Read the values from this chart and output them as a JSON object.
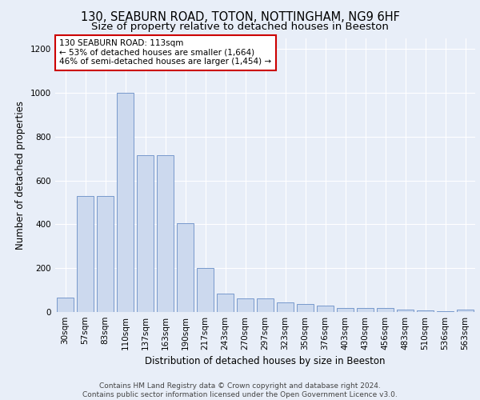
{
  "title1": "130, SEABURN ROAD, TOTON, NOTTINGHAM, NG9 6HF",
  "title2": "Size of property relative to detached houses in Beeston",
  "xlabel": "Distribution of detached houses by size in Beeston",
  "ylabel": "Number of detached properties",
  "categories": [
    "30sqm",
    "57sqm",
    "83sqm",
    "110sqm",
    "137sqm",
    "163sqm",
    "190sqm",
    "217sqm",
    "243sqm",
    "270sqm",
    "297sqm",
    "323sqm",
    "350sqm",
    "376sqm",
    "403sqm",
    "430sqm",
    "456sqm",
    "483sqm",
    "510sqm",
    "536sqm",
    "563sqm"
  ],
  "values": [
    65,
    530,
    530,
    1000,
    715,
    715,
    405,
    200,
    85,
    62,
    62,
    45,
    35,
    30,
    20,
    18,
    18,
    12,
    8,
    5,
    12
  ],
  "bar_color": "#ccd9ee",
  "bar_edge_color": "#7799cc",
  "annotation_text": "130 SEABURN ROAD: 113sqm\n← 53% of detached houses are smaller (1,664)\n46% of semi-detached houses are larger (1,454) →",
  "annotation_box_facecolor": "white",
  "annotation_box_edgecolor": "#cc0000",
  "ylim": [
    0,
    1250
  ],
  "yticks": [
    0,
    200,
    400,
    600,
    800,
    1000,
    1200
  ],
  "background_color": "#e8eef8",
  "grid_color": "#ffffff",
  "footer_text": "Contains HM Land Registry data © Crown copyright and database right 2024.\nContains public sector information licensed under the Open Government Licence v3.0.",
  "title1_fontsize": 10.5,
  "title2_fontsize": 9.5,
  "xlabel_fontsize": 8.5,
  "ylabel_fontsize": 8.5,
  "tick_fontsize": 7.5,
  "annotation_fontsize": 7.5,
  "footer_fontsize": 6.5
}
